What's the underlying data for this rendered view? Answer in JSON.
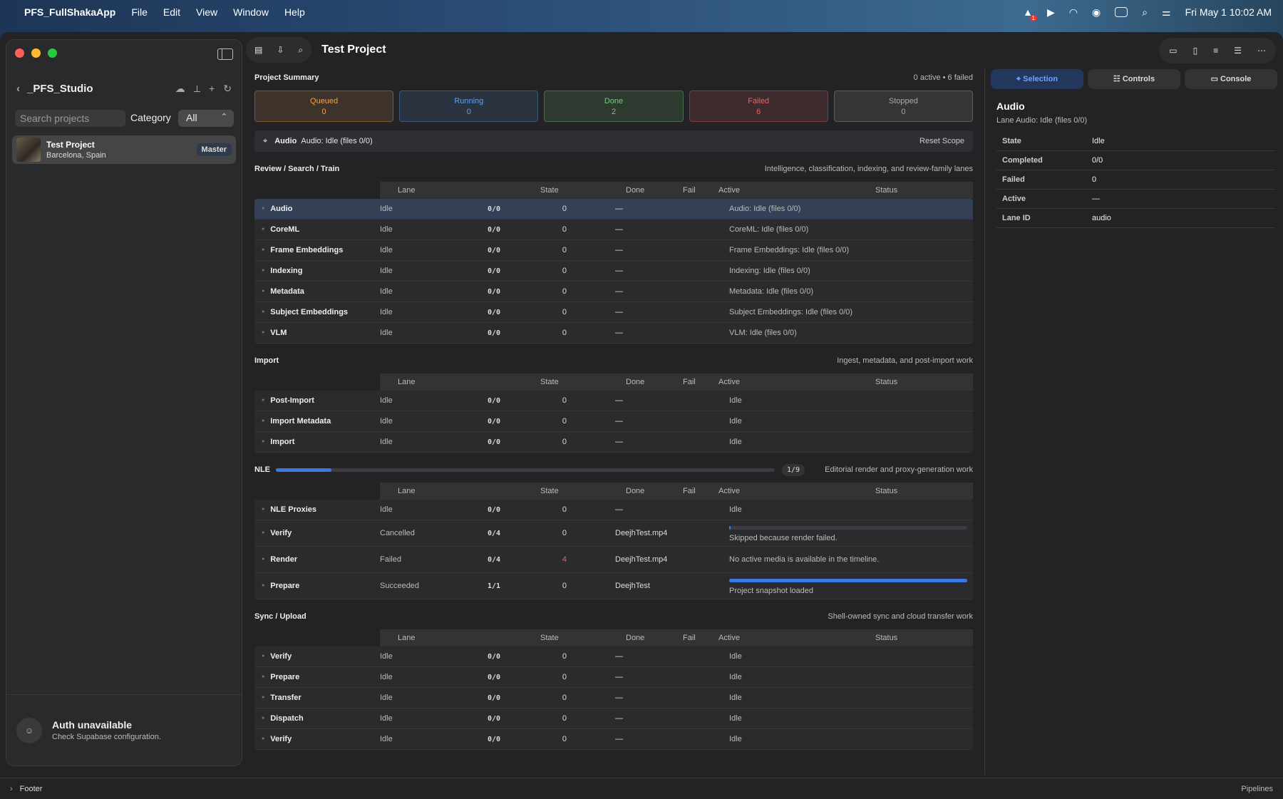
{
  "menubar": {
    "app_name": "PFS_FullShakaApp",
    "items": [
      "File",
      "Edit",
      "View",
      "Window",
      "Help"
    ],
    "badge": "1",
    "datetime": "Fri May 1  10:02 AM"
  },
  "sidebar": {
    "studio": "_PFS_Studio",
    "search_placeholder": "Search projects",
    "category_label": "Category",
    "category_value": "All",
    "project": {
      "title": "Test Project",
      "location": "Barcelona, Spain",
      "badge": "Master"
    },
    "auth": {
      "title": "Auth unavailable",
      "subtitle": "Check Supabase configuration."
    }
  },
  "toolbar": {
    "title": "Test Project"
  },
  "summary": {
    "title": "Project Summary",
    "status": "0 active • 6 failed",
    "cards": [
      {
        "label": "Queued",
        "value": "0",
        "color": "#f0a050"
      },
      {
        "label": "Running",
        "value": "0",
        "color": "#5fa0f0"
      },
      {
        "label": "Done",
        "value": "2",
        "color": "#7acc7a"
      },
      {
        "label": "Failed",
        "value": "6",
        "color": "#f06060"
      },
      {
        "label": "Stopped",
        "value": "0",
        "color": "#aaaaaa"
      }
    ],
    "scope_name": "Audio",
    "scope_desc": "Audio: Idle (files 0/0)",
    "reset_label": "Reset Scope"
  },
  "columns": [
    "Lane",
    "State",
    "Done",
    "Fail",
    "Active",
    "Status"
  ],
  "sections": [
    {
      "title": "Review / Search / Train",
      "desc": "Intelligence, classification, indexing, and review-family lanes",
      "rows": [
        {
          "name": "Audio",
          "state": "Idle",
          "done": "0/0",
          "fail": "0",
          "active": "—",
          "status": "Audio: Idle (files 0/0)"
        },
        {
          "name": "CoreML",
          "state": "Idle",
          "done": "0/0",
          "fail": "0",
          "active": "—",
          "status": "CoreML: Idle (files 0/0)"
        },
        {
          "name": "Frame Embeddings",
          "state": "Idle",
          "done": "0/0",
          "fail": "0",
          "active": "—",
          "status": "Frame Embeddings: Idle (files 0/0)"
        },
        {
          "name": "Indexing",
          "state": "Idle",
          "done": "0/0",
          "fail": "0",
          "active": "—",
          "status": "Indexing: Idle (files 0/0)"
        },
        {
          "name": "Metadata",
          "state": "Idle",
          "done": "0/0",
          "fail": "0",
          "active": "—",
          "status": "Metadata: Idle (files 0/0)"
        },
        {
          "name": "Subject Embeddings",
          "state": "Idle",
          "done": "0/0",
          "fail": "0",
          "active": "—",
          "status": "Subject Embeddings: Idle (files 0/0)"
        },
        {
          "name": "VLM",
          "state": "Idle",
          "done": "0/0",
          "fail": "0",
          "active": "—",
          "status": "VLM: Idle (files 0/0)"
        }
      ]
    },
    {
      "title": "Import",
      "desc": "Ingest, metadata, and post-import work",
      "rows": [
        {
          "name": "Post-Import",
          "state": "Idle",
          "done": "0/0",
          "fail": "0",
          "active": "—",
          "status": "Idle"
        },
        {
          "name": "Import Metadata",
          "state": "Idle",
          "done": "0/0",
          "fail": "0",
          "active": "—",
          "status": "Idle"
        },
        {
          "name": "Import",
          "state": "Idle",
          "done": "0/0",
          "fail": "0",
          "active": "—",
          "status": "Idle"
        }
      ]
    }
  ],
  "nle": {
    "title": "NLE",
    "progress": 0.111,
    "count": "1/9",
    "desc": "Editorial render and proxy-generation work",
    "rows": [
      {
        "name": "NLE Proxies",
        "state": "Idle",
        "done": "0/0",
        "fail": "0",
        "active": "—",
        "status": "Idle"
      },
      {
        "name": "Verify",
        "state": "Cancelled",
        "done": "0/4",
        "fail": "0",
        "active": "DeejhTest.mp4",
        "status": "Skipped because render failed.",
        "progress": 0.0
      },
      {
        "name": "Render",
        "state": "Failed",
        "done": "0/4",
        "fail": "4",
        "active": "DeejhTest.mp4",
        "status": "No active media is available in the timeline."
      },
      {
        "name": "Prepare",
        "state": "Succeeded",
        "done": "1/1",
        "fail": "0",
        "active": "DeejhTest",
        "status": "Project snapshot loaded",
        "progress": 1.0
      }
    ]
  },
  "sync": {
    "title": "Sync / Upload",
    "desc": "Shell-owned sync and cloud transfer work",
    "rows": [
      {
        "name": "Verify",
        "state": "Idle",
        "done": "0/0",
        "fail": "0",
        "active": "—",
        "status": "Idle"
      },
      {
        "name": "Prepare",
        "state": "Idle",
        "done": "0/0",
        "fail": "0",
        "active": "—",
        "status": "Idle"
      },
      {
        "name": "Transfer",
        "state": "Idle",
        "done": "0/0",
        "fail": "0",
        "active": "—",
        "status": "Idle"
      },
      {
        "name": "Dispatch",
        "state": "Idle",
        "done": "0/0",
        "fail": "0",
        "active": "—",
        "status": "Idle"
      },
      {
        "name": "Verify",
        "state": "Idle",
        "done": "0/0",
        "fail": "0",
        "active": "—",
        "status": "Idle"
      }
    ]
  },
  "inspector": {
    "tabs": [
      "Selection",
      "Controls",
      "Console"
    ],
    "title": "Audio",
    "sub_label": "Lane",
    "sub_value": "Audio: Idle (files 0/0)",
    "fields": [
      {
        "k": "State",
        "v": "Idle"
      },
      {
        "k": "Completed",
        "v": "0/0"
      },
      {
        "k": "Failed",
        "v": "0"
      },
      {
        "k": "Active",
        "v": "—"
      },
      {
        "k": "Lane ID",
        "v": "audio"
      }
    ]
  },
  "footer": {
    "left": "Footer",
    "right": "Pipelines"
  }
}
